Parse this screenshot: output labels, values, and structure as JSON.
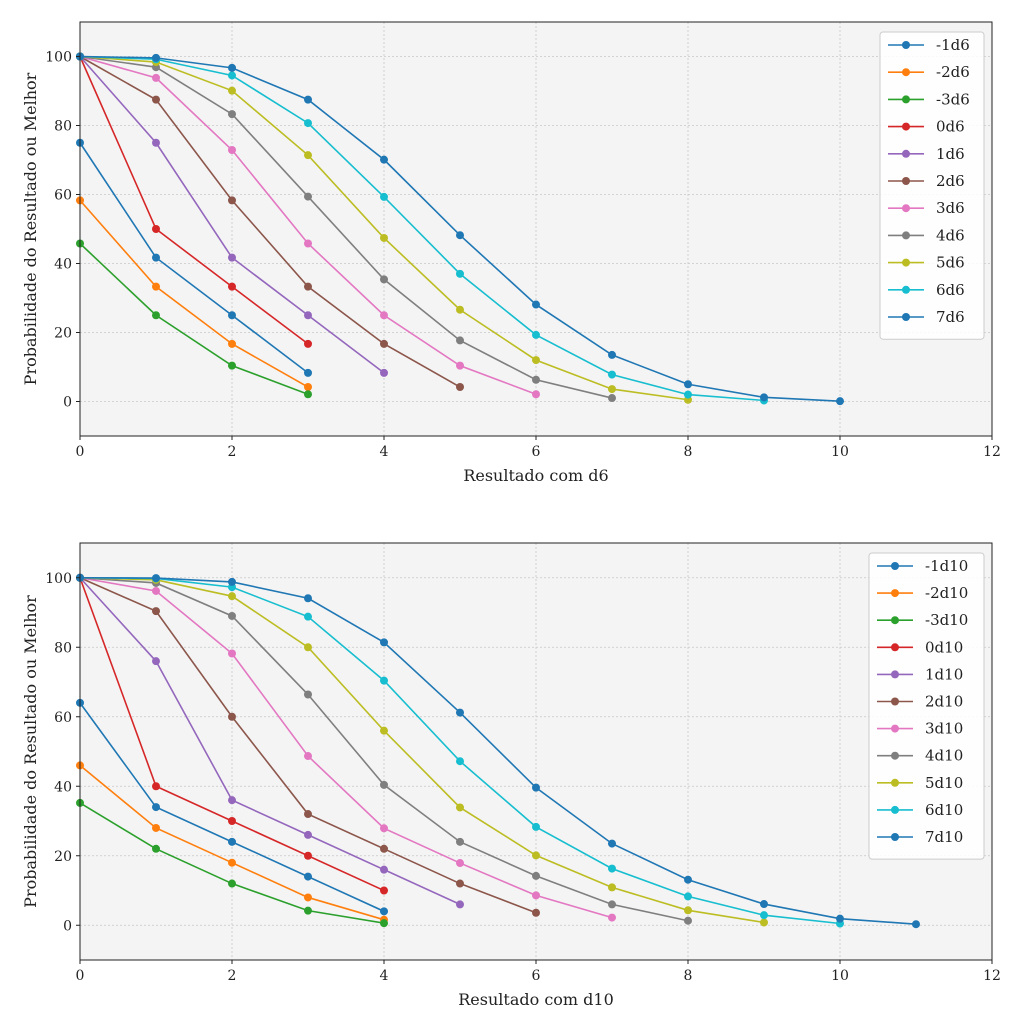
{
  "chart_data": [
    {
      "type": "line",
      "title": "",
      "xlabel": "Resultado com d6",
      "ylabel": "Probabilidade do Resultado ou Melhor",
      "xlim": [
        0,
        12
      ],
      "ylim": [
        -10,
        110
      ],
      "xticks": [
        0,
        2,
        4,
        6,
        8,
        10,
        12
      ],
      "yticks": [
        0,
        20,
        40,
        60,
        80,
        100
      ],
      "grid": true,
      "legend_position": "upper right",
      "series": [
        {
          "name": "-1d6",
          "color": "#1f77b4",
          "x": [
            0,
            1,
            2,
            3
          ],
          "y": [
            75,
            41.7,
            25,
            8.3
          ]
        },
        {
          "name": "-2d6",
          "color": "#ff7f0e",
          "x": [
            0,
            1,
            2,
            3
          ],
          "y": [
            58.3,
            33.3,
            16.7,
            4.2
          ]
        },
        {
          "name": "-3d6",
          "color": "#2ca02c",
          "x": [
            0,
            1,
            2,
            3
          ],
          "y": [
            45.8,
            25,
            10.4,
            2.1
          ]
        },
        {
          "name": "0d6",
          "color": "#d62728",
          "x": [
            0,
            1,
            2,
            3
          ],
          "y": [
            100,
            50,
            33.3,
            16.7
          ]
        },
        {
          "name": "1d6",
          "color": "#9467bd",
          "x": [
            0,
            1,
            2,
            3,
            4
          ],
          "y": [
            100,
            75,
            41.7,
            25,
            8.3
          ]
        },
        {
          "name": "2d6",
          "color": "#8c564b",
          "x": [
            0,
            1,
            2,
            3,
            4,
            5
          ],
          "y": [
            100,
            87.5,
            58.3,
            33.3,
            16.7,
            4.2
          ]
        },
        {
          "name": "3d6",
          "color": "#e377c2",
          "x": [
            0,
            1,
            2,
            3,
            4,
            5,
            6
          ],
          "y": [
            100,
            93.8,
            72.9,
            45.8,
            25,
            10.4,
            2.1
          ]
        },
        {
          "name": "4d6",
          "color": "#7f7f7f",
          "x": [
            0,
            1,
            2,
            3,
            4,
            5,
            6,
            7
          ],
          "y": [
            100,
            96.9,
            83.3,
            59.4,
            35.4,
            17.7,
            6.3,
            1
          ]
        },
        {
          "name": "5d6",
          "color": "#bcbd22",
          "x": [
            0,
            1,
            2,
            3,
            4,
            5,
            6,
            7,
            8
          ],
          "y": [
            100,
            98.4,
            90.1,
            71.4,
            47.4,
            26.6,
            12,
            3.6,
            0.5
          ]
        },
        {
          "name": "6d6",
          "color": "#17becf",
          "x": [
            0,
            1,
            2,
            3,
            4,
            5,
            6,
            7,
            8,
            9
          ],
          "y": [
            100,
            99.2,
            94.5,
            80.7,
            59.3,
            37,
            19.3,
            7.8,
            2,
            0.3
          ]
        },
        {
          "name": "7d6",
          "color": "#1f77b4",
          "x": [
            0,
            1,
            2,
            3,
            4,
            5,
            6,
            7,
            8,
            9,
            10
          ],
          "y": [
            100,
            99.6,
            96.7,
            87.5,
            70.1,
            48.2,
            28.1,
            13.5,
            5,
            1.2,
            0.1
          ]
        }
      ]
    },
    {
      "type": "line",
      "title": "",
      "xlabel": "Resultado com d10",
      "ylabel": "Probabilidade do Resultado ou Melhor",
      "xlim": [
        0,
        12
      ],
      "ylim": [
        -10,
        110
      ],
      "xticks": [
        0,
        2,
        4,
        6,
        8,
        10,
        12
      ],
      "yticks": [
        0,
        20,
        40,
        60,
        80,
        100
      ],
      "grid": true,
      "legend_position": "upper right",
      "series": [
        {
          "name": "-1d10",
          "color": "#1f77b4",
          "x": [
            0,
            1,
            2,
            3,
            4
          ],
          "y": [
            64,
            34,
            24,
            14,
            4
          ]
        },
        {
          "name": "-2d10",
          "color": "#ff7f0e",
          "x": [
            0,
            1,
            2,
            3,
            4
          ],
          "y": [
            46,
            28,
            18,
            8,
            1.6
          ]
        },
        {
          "name": "-3d10",
          "color": "#2ca02c",
          "x": [
            0,
            1,
            2,
            3,
            4
          ],
          "y": [
            35.2,
            22,
            12,
            4.2,
            0.6
          ]
        },
        {
          "name": "0d10",
          "color": "#d62728",
          "x": [
            0,
            1,
            2,
            3,
            4
          ],
          "y": [
            100,
            40,
            30,
            20,
            10
          ]
        },
        {
          "name": "1d10",
          "color": "#9467bd",
          "x": [
            0,
            1,
            2,
            3,
            4,
            5
          ],
          "y": [
            100,
            76,
            36,
            26,
            16,
            6
          ]
        },
        {
          "name": "2d10",
          "color": "#8c564b",
          "x": [
            0,
            1,
            2,
            3,
            4,
            5,
            6
          ],
          "y": [
            100,
            90.4,
            60,
            32,
            22,
            12,
            3.6
          ]
        },
        {
          "name": "3d10",
          "color": "#e377c2",
          "x": [
            0,
            1,
            2,
            3,
            4,
            5,
            6,
            7
          ],
          "y": [
            100,
            96.2,
            78.2,
            48.7,
            27.9,
            17.9,
            8.6,
            2.2
          ]
        },
        {
          "name": "4d10",
          "color": "#7f7f7f",
          "x": [
            0,
            1,
            2,
            3,
            4,
            5,
            6,
            7,
            8
          ],
          "y": [
            100,
            98.5,
            89,
            66.4,
            40.4,
            24,
            14.2,
            6,
            1.3
          ]
        },
        {
          "name": "5d10",
          "color": "#bcbd22",
          "x": [
            0,
            1,
            2,
            3,
            4,
            5,
            6,
            7,
            8,
            9
          ],
          "y": [
            100,
            99.4,
            94.7,
            80,
            56,
            33.9,
            20.1,
            10.9,
            4.3,
            0.8
          ]
        },
        {
          "name": "6d10",
          "color": "#17becf",
          "x": [
            0,
            1,
            2,
            3,
            4,
            5,
            6,
            7,
            8,
            9,
            10
          ],
          "y": [
            100,
            99.8,
            97.3,
            88.8,
            70.4,
            47.2,
            28.3,
            16.3,
            8.3,
            2.9,
            0.5
          ]
        },
        {
          "name": "7d10",
          "color": "#1f77b4",
          "x": [
            0,
            1,
            2,
            3,
            4,
            5,
            6,
            7,
            8,
            9,
            10,
            11
          ],
          "y": [
            100,
            99.9,
            98.8,
            94.1,
            81.4,
            61.2,
            39.6,
            23.5,
            13.1,
            6.1,
            1.9,
            0.3
          ]
        }
      ]
    }
  ]
}
